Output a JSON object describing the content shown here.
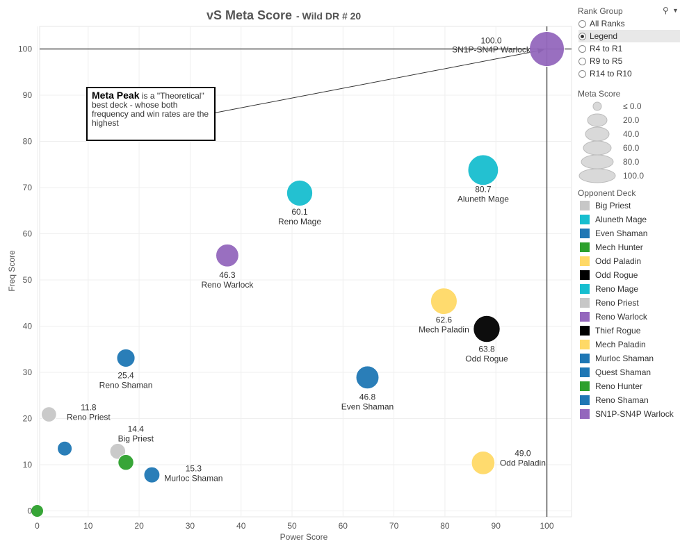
{
  "title": "vS Meta Score",
  "subtitle": "- Wild DR # 20",
  "chart_data": {
    "type": "scatter",
    "title": "vS Meta Score - Wild DR # 20",
    "xlabel": "Power Score",
    "ylabel": "Freq Score",
    "xlim": [
      0,
      105
    ],
    "ylim": [
      0,
      105
    ],
    "xticks": [
      0,
      10,
      20,
      30,
      40,
      50,
      60,
      70,
      80,
      90,
      100
    ],
    "yticks": [
      0,
      10,
      20,
      30,
      40,
      50,
      60,
      70,
      80,
      90,
      100
    ],
    "grid": true,
    "reference_lines": {
      "x": 100,
      "y": 100
    },
    "points": [
      {
        "name": "SN1P-SN4P Warlock",
        "x": 100.0,
        "y": 100.0,
        "meta": 100.0,
        "color": "#9467bd",
        "label": "100.0"
      },
      {
        "name": "Aluneth Mage",
        "x": 87.5,
        "y": 73.8,
        "meta": 80.7,
        "color": "#17becf",
        "label": "80.7"
      },
      {
        "name": "Reno Mage",
        "x": 51.5,
        "y": 68.8,
        "meta": 60.1,
        "color": "#17becf",
        "label": "60.1"
      },
      {
        "name": "Reno Warlock",
        "x": 37.3,
        "y": 55.3,
        "meta": 46.3,
        "color": "#9467bd",
        "label": "46.3"
      },
      {
        "name": "Mech Paladin",
        "x": 79.8,
        "y": 45.4,
        "meta": 62.6,
        "color": "#ffd966",
        "label": "62.6"
      },
      {
        "name": "Odd Rogue",
        "x": 88.2,
        "y": 39.4,
        "meta": 63.8,
        "color": "#000000",
        "label": "63.8"
      },
      {
        "name": "Reno Shaman",
        "x": 17.4,
        "y": 33.1,
        "meta": 25.4,
        "color": "#1f77b4",
        "label": "25.4"
      },
      {
        "name": "Even Shaman",
        "x": 64.8,
        "y": 28.9,
        "meta": 46.8,
        "color": "#1f77b4",
        "label": "46.8"
      },
      {
        "name": "Reno Priest",
        "x": 2.3,
        "y": 20.9,
        "meta": 11.8,
        "color": "#c7c7c7",
        "label": "11.8"
      },
      {
        "name": "Big Priest",
        "x": 15.8,
        "y": 12.9,
        "meta": 14.4,
        "color": "#c7c7c7",
        "label": "14.4"
      },
      {
        "name": "Quest Shaman",
        "x": 5.4,
        "y": 13.5,
        "meta": 9.5,
        "color": "#1f77b4",
        "label": ""
      },
      {
        "name": "Reno Hunter",
        "x": 17.4,
        "y": 10.5,
        "meta": 14.0,
        "color": "#2ca02c",
        "label": ""
      },
      {
        "name": "Murloc Shaman",
        "x": 22.5,
        "y": 7.8,
        "meta": 15.3,
        "color": "#1f77b4",
        "label": "15.3"
      },
      {
        "name": "Odd Paladin",
        "x": 87.5,
        "y": 10.4,
        "meta": 49.0,
        "color": "#ffd966",
        "label": "49.0"
      },
      {
        "name": "Mech Hunter",
        "x": 0.0,
        "y": 0.0,
        "meta": 0.0,
        "color": "#2ca02c",
        "label": ""
      }
    ]
  },
  "annotation": {
    "bold": "Meta Peak",
    "text": " is a \"Theoretical\" best deck - whose both frequency and win rates are the highest"
  },
  "rank_group": {
    "title": "Rank Group",
    "options": [
      {
        "label": "All Ranks",
        "selected": false
      },
      {
        "label": "Legend",
        "selected": true
      },
      {
        "label": "R4 to R1",
        "selected": false
      },
      {
        "label": "R9 to R5",
        "selected": false
      },
      {
        "label": "R14 to R10",
        "selected": false
      }
    ]
  },
  "meta_score_legend": {
    "title": "Meta Score",
    "entries": [
      "≤ 0.0",
      "20.0",
      "40.0",
      "60.0",
      "80.0",
      "100.0"
    ]
  },
  "opponent_deck": {
    "title": "Opponent Deck",
    "entries": [
      {
        "label": "Big Priest",
        "color": "#c7c7c7"
      },
      {
        "label": "Aluneth Mage",
        "color": "#17becf"
      },
      {
        "label": "Even Shaman",
        "color": "#1f77b4"
      },
      {
        "label": "Mech Hunter",
        "color": "#2ca02c"
      },
      {
        "label": "Odd Paladin",
        "color": "#ffd966"
      },
      {
        "label": "Odd Rogue",
        "color": "#000000"
      },
      {
        "label": "Reno Mage",
        "color": "#17becf"
      },
      {
        "label": "Reno Priest",
        "color": "#c7c7c7"
      },
      {
        "label": "Reno Warlock",
        "color": "#9467bd"
      },
      {
        "label": "Thief Rogue",
        "color": "#000000"
      },
      {
        "label": "Mech Paladin",
        "color": "#ffd966"
      },
      {
        "label": "Murloc Shaman",
        "color": "#1f77b4"
      },
      {
        "label": "Quest Shaman",
        "color": "#1f77b4"
      },
      {
        "label": "Reno Hunter",
        "color": "#2ca02c"
      },
      {
        "label": "Reno Shaman",
        "color": "#1f77b4"
      },
      {
        "label": "SN1P-SN4P Warlock",
        "color": "#9467bd"
      }
    ]
  }
}
